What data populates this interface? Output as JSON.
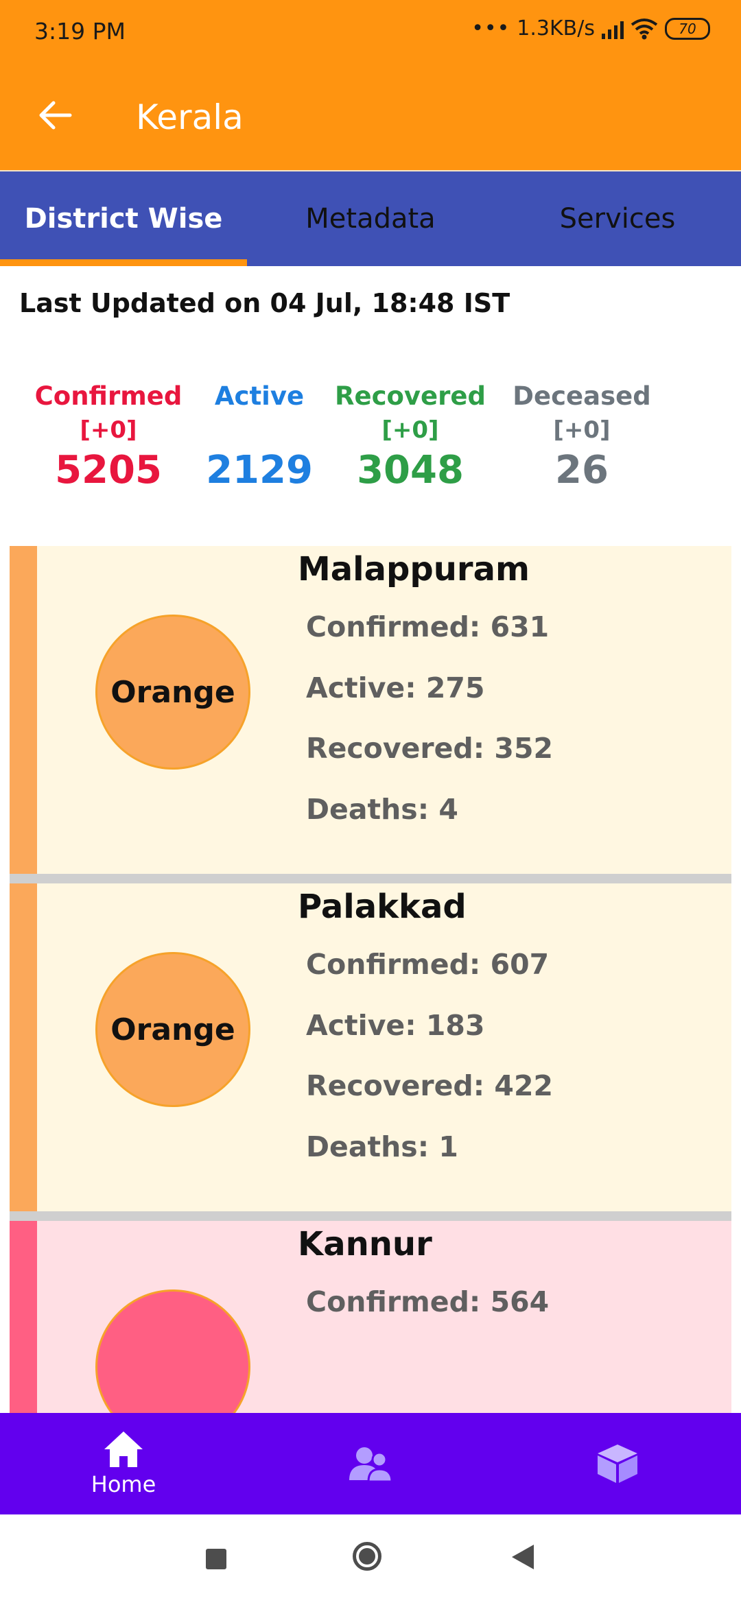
{
  "status_bar": {
    "time": "3:19 PM",
    "net_speed": "1.3KB/s",
    "battery": "70"
  },
  "app_bar": {
    "title": "Kerala"
  },
  "tabs": [
    {
      "label": "District Wise",
      "active": true
    },
    {
      "label": "Metadata",
      "active": false
    },
    {
      "label": "Services",
      "active": false
    }
  ],
  "last_updated": "Last Updated on 04 Jul, 18:48 IST",
  "stats": {
    "confirmed": {
      "label": "Confirmed",
      "delta": "[+0]",
      "value": "5205",
      "color": "#E8163E"
    },
    "active": {
      "label": "Active",
      "delta": "",
      "value": "2129",
      "color": "#1E7FE0"
    },
    "recovered": {
      "label": "Recovered",
      "delta": "[+0]",
      "value": "3048",
      "color": "#2E9E47"
    },
    "deceased": {
      "label": "Deceased",
      "delta": "[+0]",
      "value": "26",
      "color": "#6C757D"
    }
  },
  "districts": [
    {
      "name": "Malappuram",
      "zone": "Orange",
      "confirmed": "Confirmed: 631",
      "active": "Active: 275",
      "recovered": "Recovered: 352",
      "deaths": "Deaths: 4",
      "zone_color": "#FBA85A",
      "card_bg": "#FFF7E1"
    },
    {
      "name": "Palakkad",
      "zone": "Orange",
      "confirmed": "Confirmed: 607",
      "active": "Active: 183",
      "recovered": "Recovered: 422",
      "deaths": "Deaths: 1",
      "zone_color": "#FBA85A",
      "card_bg": "#FFF7E1"
    },
    {
      "name": "Kannur",
      "zone": "",
      "confirmed": "Confirmed: 564",
      "active": "",
      "recovered": "",
      "deaths": "",
      "zone_color": "#FF5F83",
      "card_bg": "#FFDFE4"
    }
  ],
  "bottom_nav": [
    {
      "label": "Home",
      "icon": "home-icon"
    },
    {
      "label": "",
      "icon": "people-icon"
    },
    {
      "label": "",
      "icon": "cube-icon"
    }
  ],
  "system_nav": {
    "icons": [
      "recents-square-icon",
      "home-circle-icon",
      "back-triangle-icon"
    ]
  }
}
